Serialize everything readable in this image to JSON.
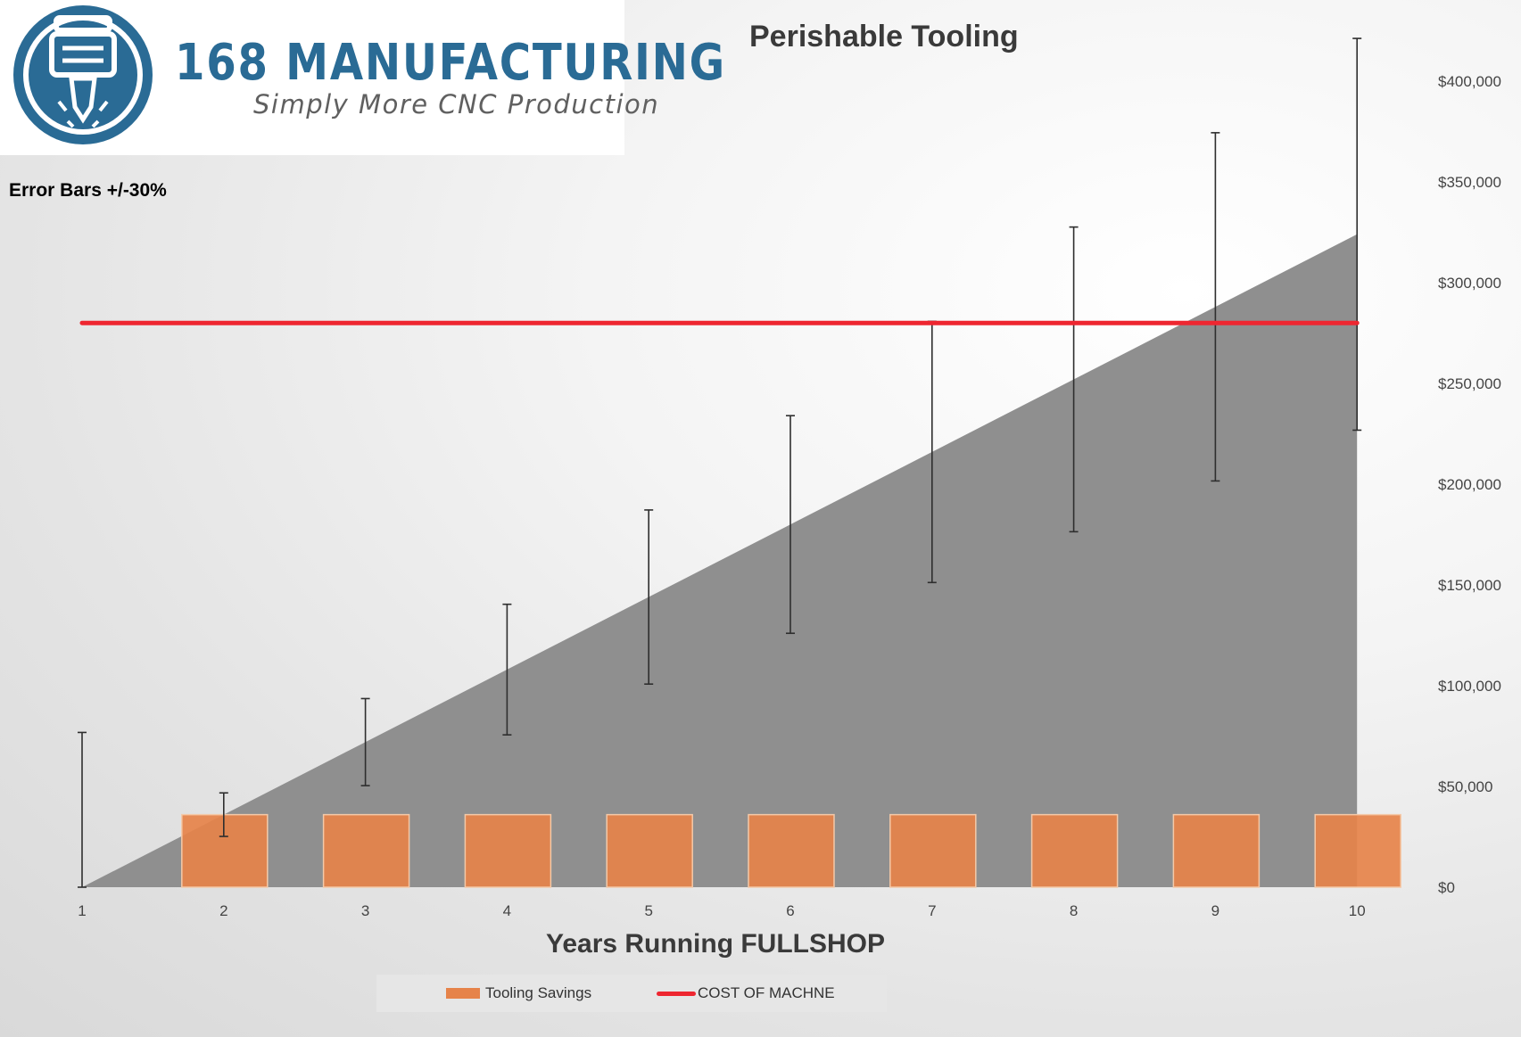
{
  "logo": {
    "name": "168 MANUFACTURING",
    "tagline": "Simply More CNC Production"
  },
  "annotation": "Error Bars +/-30%",
  "chart_data": {
    "type": "bar",
    "title": "Perishable Tooling",
    "xlabel": "Years Running FULLSHOP",
    "ylabel": "",
    "categories": [
      "1",
      "2",
      "3",
      "4",
      "5",
      "6",
      "7",
      "8",
      "9",
      "10"
    ],
    "ylim": [
      0,
      400000
    ],
    "y_ticks": [
      0,
      50000,
      100000,
      150000,
      200000,
      250000,
      300000,
      350000,
      400000
    ],
    "y_tick_labels": [
      "$0",
      "$50,000",
      "$100,000",
      "$150,000",
      "$200,000",
      "$250,000",
      "$300,000",
      "$350,000",
      "$400,000"
    ],
    "y_axis_side": "right",
    "cumulative_area": {
      "values": [
        0,
        36000,
        72000,
        108000,
        144000,
        180000,
        216000,
        252000,
        288000,
        324000
      ],
      "color": "#8f8f8f",
      "error_bars_percent": 30
    },
    "series": [
      {
        "name": "Tooling Savings",
        "type": "bar",
        "color": "#e6834a",
        "values": [
          null,
          36000,
          36000,
          36000,
          36000,
          36000,
          36000,
          36000,
          36000,
          36000
        ]
      },
      {
        "name": "COST OF MACHNE",
        "type": "line",
        "color": "#ee2630",
        "values": [
          280000,
          280000,
          280000,
          280000,
          280000,
          280000,
          280000,
          280000,
          280000,
          280000
        ]
      }
    ],
    "legend_position": "bottom",
    "grid": false
  }
}
